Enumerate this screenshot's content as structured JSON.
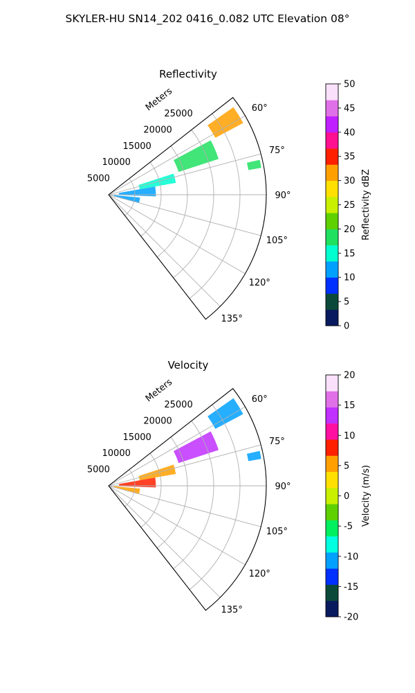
{
  "figure_title": "SKYLER-HU  SN14_202  0416_0.082 UTC Elevation 08°",
  "chart_data": [
    {
      "type": "heatmap",
      "projection": "polar-sector",
      "title": "Reflectivity",
      "range_label": "Meters",
      "range_ticks": [
        5000,
        10000,
        15000,
        20000,
        25000
      ],
      "range_max": 30000,
      "angle_ticks": [
        "60°",
        "75°",
        "90°",
        "105°",
        "120°",
        "135°"
      ],
      "angle_range_deg": [
        52,
        142
      ],
      "colorbar": {
        "label": "Reflectivity dBZ",
        "min": 0,
        "max": 50,
        "ticks": [
          0,
          5,
          10,
          15,
          20,
          25,
          30,
          35,
          40,
          45,
          50
        ],
        "colors": [
          "#0a1a5e",
          "#0b4a3a",
          "#0030ff",
          "#00a0ff",
          "#00ffd0",
          "#20e060",
          "#5fd000",
          "#c8f000",
          "#ffe000",
          "#ffa000",
          "#ff2000",
          "#ff1090",
          "#c020ff",
          "#e070e8",
          "#fbe0fb"
        ]
      },
      "echo_regions": [
        {
          "az_deg": [
            55,
            62
          ],
          "range_m": [
            23000,
            29000
          ],
          "value": 32
        },
        {
          "az_deg": [
            62,
            72
          ],
          "range_m": [
            14000,
            22000
          ],
          "value": 19
        },
        {
          "az_deg": [
            72,
            80
          ],
          "range_m": [
            6000,
            13000
          ],
          "value": 15
        },
        {
          "az_deg": [
            80,
            92
          ],
          "range_m": [
            2000,
            9000
          ],
          "value": 12
        },
        {
          "az_deg": [
            77,
            80
          ],
          "range_m": [
            27000,
            29500
          ],
          "value": 18
        },
        {
          "az_deg": [
            95,
            105
          ],
          "range_m": [
            1000,
            6000
          ],
          "value": 10
        }
      ]
    },
    {
      "type": "heatmap",
      "projection": "polar-sector",
      "title": "Velocity",
      "range_label": "Meters",
      "range_ticks": [
        5000,
        10000,
        15000,
        20000,
        25000
      ],
      "range_max": 30000,
      "angle_ticks": [
        "60°",
        "75°",
        "90°",
        "105°",
        "120°",
        "135°"
      ],
      "angle_range_deg": [
        52,
        142
      ],
      "colorbar": {
        "label": "Velocity (m/s)",
        "min": -20,
        "max": 20,
        "ticks": [
          -20,
          -15,
          -10,
          -5,
          0,
          5,
          10,
          15,
          20
        ],
        "colors": [
          "#0a1a5e",
          "#0b4a3a",
          "#0030ff",
          "#00a0ff",
          "#00ffe0",
          "#00f060",
          "#5fd000",
          "#c8f000",
          "#ffe000",
          "#ffa000",
          "#ff2000",
          "#ff10a0",
          "#c030ff",
          "#e070e8",
          "#fbe0fb"
        ]
      },
      "echo_regions": [
        {
          "az_deg": [
            55,
            62
          ],
          "range_m": [
            23000,
            29000
          ],
          "value": -11
        },
        {
          "az_deg": [
            62,
            72
          ],
          "range_m": [
            14000,
            22000
          ],
          "value": 14
        },
        {
          "az_deg": [
            72,
            80
          ],
          "range_m": [
            6000,
            13000
          ],
          "value": 5
        },
        {
          "az_deg": [
            80,
            92
          ],
          "range_m": [
            2000,
            9000
          ],
          "value": 9
        },
        {
          "az_deg": [
            77,
            80
          ],
          "range_m": [
            27000,
            29500
          ],
          "value": -12
        },
        {
          "az_deg": [
            95,
            105
          ],
          "range_m": [
            1000,
            6000
          ],
          "value": 4
        }
      ]
    }
  ]
}
